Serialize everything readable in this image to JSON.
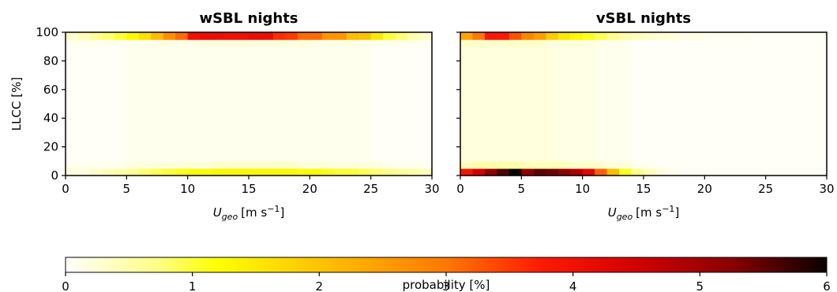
{
  "chart_data": [
    {
      "type": "heatmap",
      "title": "wSBL nights",
      "xlabel_main": "U",
      "xlabel_sub": "geo",
      "xlabel_unit": "[m s",
      "xlabel_exp": "−1",
      "xlabel_close": "]",
      "ylabel": "LLCC [%]",
      "xlim": [
        0,
        30
      ],
      "ylim": [
        0,
        100
      ],
      "xticks": [
        "0",
        "5",
        "10",
        "15",
        "20",
        "25",
        "30"
      ],
      "yticks": [
        "0",
        "20",
        "40",
        "60",
        "80",
        "100"
      ],
      "x_edges": [
        0,
        30
      ],
      "x_bin_width": 1,
      "y_bin_width": 5,
      "rows": [
        {
          "y0": 0,
          "y1": 5,
          "values": [
            0.2,
            0.2,
            0.3,
            0.4,
            0.5,
            0.6,
            0.8,
            0.9,
            1.0,
            1.1,
            1.2,
            1.2,
            1.3,
            1.3,
            1.3,
            1.3,
            1.3,
            1.3,
            1.3,
            1.2,
            1.2,
            1.1,
            1.0,
            1.0,
            0.9,
            0.8,
            0.7,
            0.6,
            0.5,
            0.4
          ]
        },
        {
          "y0": 5,
          "y1": 10,
          "values": [
            0.1,
            0.1,
            0.1,
            0.1,
            0.1,
            0.2,
            0.2,
            0.2,
            0.2,
            0.2,
            0.2,
            0.2,
            0.3,
            0.3,
            0.3,
            0.3,
            0.3,
            0.3,
            0.3,
            0.2,
            0.2,
            0.2,
            0.2,
            0.2,
            0.2,
            0.2,
            0.1,
            0.1,
            0.1,
            0.1
          ]
        },
        {
          "y0": 10,
          "y1": 90,
          "values": [
            0.05,
            0.05,
            0.05,
            0.05,
            0.05,
            0.1,
            0.1,
            0.1,
            0.1,
            0.1,
            0.1,
            0.1,
            0.1,
            0.1,
            0.1,
            0.1,
            0.1,
            0.1,
            0.1,
            0.1,
            0.1,
            0.1,
            0.1,
            0.1,
            0.1,
            0.05,
            0.05,
            0.05,
            0.05,
            0.05
          ]
        },
        {
          "y0": 90,
          "y1": 95,
          "values": [
            0.1,
            0.1,
            0.1,
            0.1,
            0.1,
            0.1,
            0.1,
            0.15,
            0.15,
            0.15,
            0.15,
            0.2,
            0.2,
            0.2,
            0.2,
            0.2,
            0.2,
            0.2,
            0.2,
            0.2,
            0.15,
            0.15,
            0.15,
            0.15,
            0.1,
            0.1,
            0.1,
            0.1,
            0.1,
            0.1
          ]
        },
        {
          "y0": 95,
          "y1": 100,
          "values": [
            0.3,
            0.4,
            0.6,
            0.8,
            1.0,
            1.3,
            1.6,
            2.1,
            2.7,
            3.1,
            4.0,
            4.1,
            4.1,
            4.0,
            4.0,
            4.1,
            4.1,
            3.6,
            3.5,
            3.1,
            3.1,
            2.6,
            2.6,
            2.1,
            2.0,
            1.5,
            1.0,
            0.8,
            0.5,
            0.3
          ]
        }
      ]
    },
    {
      "type": "heatmap",
      "title": "vSBL nights",
      "xlabel_main": "U",
      "xlabel_sub": "geo",
      "xlabel_unit": "[m s",
      "xlabel_exp": "−1",
      "xlabel_close": "]",
      "ylabel": "",
      "xlim": [
        0,
        30
      ],
      "ylim": [
        0,
        100
      ],
      "xticks": [
        "0",
        "5",
        "10",
        "15",
        "20",
        "25",
        "30"
      ],
      "yticks": [
        "",
        "",
        "",
        "",
        "",
        ""
      ],
      "x_bin_width": 1,
      "y_bin_width": 5,
      "rows": [
        {
          "y0": 0,
          "y1": 5,
          "values": [
            3.9,
            4.5,
            5.2,
            5.6,
            6.0,
            5.2,
            5.5,
            5.4,
            5.2,
            4.9,
            4.3,
            3.2,
            2.1,
            1.1,
            0.7,
            0.4,
            0.2,
            0.1,
            0.05,
            0.05,
            0.05,
            0.05,
            0.05,
            0.05,
            0.05,
            0.05,
            0.05,
            0.05,
            0.05,
            0.05
          ]
        },
        {
          "y0": 5,
          "y1": 10,
          "values": [
            0.4,
            0.5,
            0.5,
            0.5,
            0.5,
            0.4,
            0.4,
            0.4,
            0.4,
            0.3,
            0.3,
            0.3,
            0.2,
            0.2,
            0.1,
            0.1,
            0.05,
            0.05,
            0.05,
            0.05,
            0.05,
            0.05,
            0.05,
            0.05,
            0.05,
            0.05,
            0.05,
            0.05,
            0.05,
            0.05
          ]
        },
        {
          "y0": 10,
          "y1": 90,
          "values": [
            0.2,
            0.2,
            0.2,
            0.2,
            0.2,
            0.2,
            0.2,
            0.2,
            0.15,
            0.15,
            0.15,
            0.1,
            0.1,
            0.1,
            0.05,
            0.05,
            0.05,
            0.05,
            0.05,
            0.05,
            0.05,
            0.05,
            0.05,
            0.05,
            0.05,
            0.05,
            0.05,
            0.05,
            0.05,
            0.05
          ]
        },
        {
          "y0": 90,
          "y1": 95,
          "values": [
            0.3,
            0.3,
            0.3,
            0.3,
            0.3,
            0.3,
            0.3,
            0.2,
            0.2,
            0.2,
            0.2,
            0.15,
            0.1,
            0.1,
            0.05,
            0.05,
            0.05,
            0.05,
            0.05,
            0.05,
            0.05,
            0.05,
            0.05,
            0.05,
            0.05,
            0.05,
            0.05,
            0.05,
            0.05,
            0.05
          ]
        },
        {
          "y0": 95,
          "y1": 100,
          "values": [
            2.4,
            3.0,
            3.8,
            3.8,
            3.3,
            2.8,
            2.5,
            1.9,
            1.5,
            1.3,
            1.1,
            0.9,
            0.7,
            0.5,
            0.4,
            0.3,
            0.25,
            0.2,
            0.15,
            0.15,
            0.1,
            0.1,
            0.1,
            0.1,
            0.05,
            0.05,
            0.05,
            0.05,
            0.05,
            0.05
          ]
        }
      ]
    }
  ],
  "colorbar": {
    "colormap": "hot_r",
    "min": 0,
    "max": 6,
    "ticks": [
      "0",
      "1",
      "2",
      "3",
      "4",
      "5",
      "6"
    ],
    "label": "probability [%]"
  }
}
